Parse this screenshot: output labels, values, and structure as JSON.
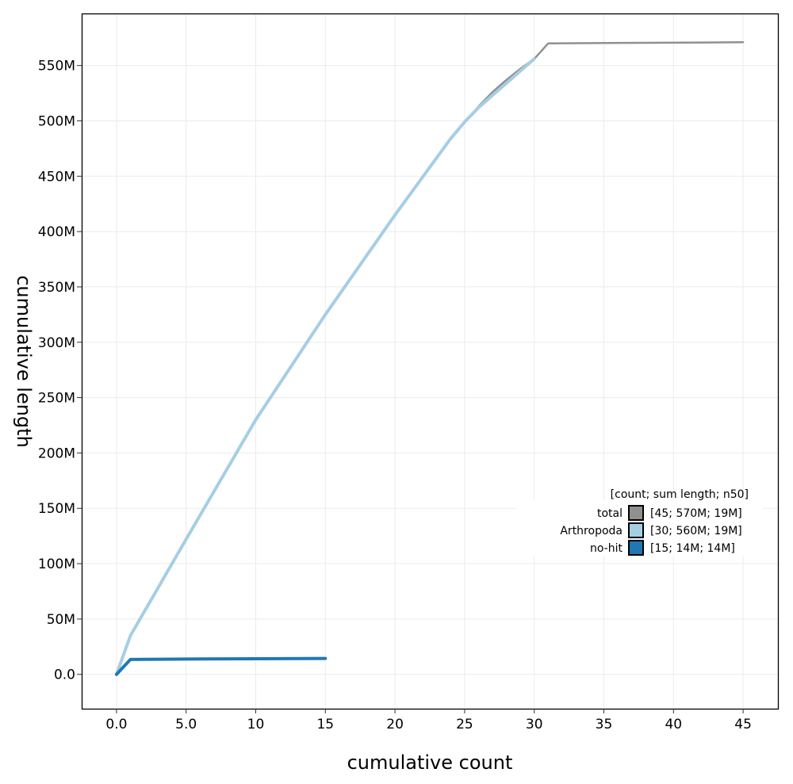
{
  "chart_data": {
    "type": "line",
    "title": "",
    "xlabel": "cumulative count",
    "ylabel": "cumulative length",
    "xlim": [
      -2.5,
      47.5
    ],
    "ylim": [
      -31000000,
      597000000
    ],
    "x_ticks": [
      0,
      5,
      10,
      15,
      20,
      25,
      30,
      35,
      40,
      45
    ],
    "x_tick_labels": [
      "0.0",
      "5.0",
      "10",
      "15",
      "20",
      "25",
      "30",
      "35",
      "40",
      "45"
    ],
    "y_ticks": [
      0,
      50000000,
      100000000,
      150000000,
      200000000,
      250000000,
      300000000,
      350000000,
      400000000,
      450000000,
      500000000,
      550000000
    ],
    "y_tick_labels": [
      "0.0",
      "50M",
      "100M",
      "150M",
      "200M",
      "250M",
      "300M",
      "350M",
      "400M",
      "450M",
      "500M",
      "550M"
    ],
    "grid": true,
    "legend_position": "right",
    "legend_title": "[count; sum length; n50]",
    "series": [
      {
        "name": "total",
        "stats": "[45; 570M; 19M]",
        "color": "#909090",
        "x": [
          0,
          1,
          5,
          10,
          15,
          20,
          24,
          25,
          26,
          27,
          28,
          29,
          30,
          31,
          45
        ],
        "y": [
          0,
          35000000,
          122000000,
          230000000,
          325000000,
          415000000,
          484000000,
          499000000,
          513000000,
          526000000,
          537000000,
          547000000,
          556000000,
          570000000,
          571000000
        ]
      },
      {
        "name": "Arthropoda",
        "stats": "[30; 560M; 19M]",
        "color": "#a6cee3",
        "x": [
          0,
          1,
          5,
          10,
          15,
          20,
          24,
          25,
          26,
          27,
          28,
          29,
          30
        ],
        "y": [
          0,
          35000000,
          122000000,
          230000000,
          325000000,
          415000000,
          484000000,
          499000000,
          512000000,
          523000000,
          534000000,
          545000000,
          556000000
        ]
      },
      {
        "name": "no-hit",
        "stats": "[15; 14M; 14M]",
        "color": "#1f78b4",
        "x": [
          0,
          1,
          5,
          10,
          15
        ],
        "y": [
          0,
          13500000,
          13800000,
          14100000,
          14400000
        ]
      }
    ]
  }
}
